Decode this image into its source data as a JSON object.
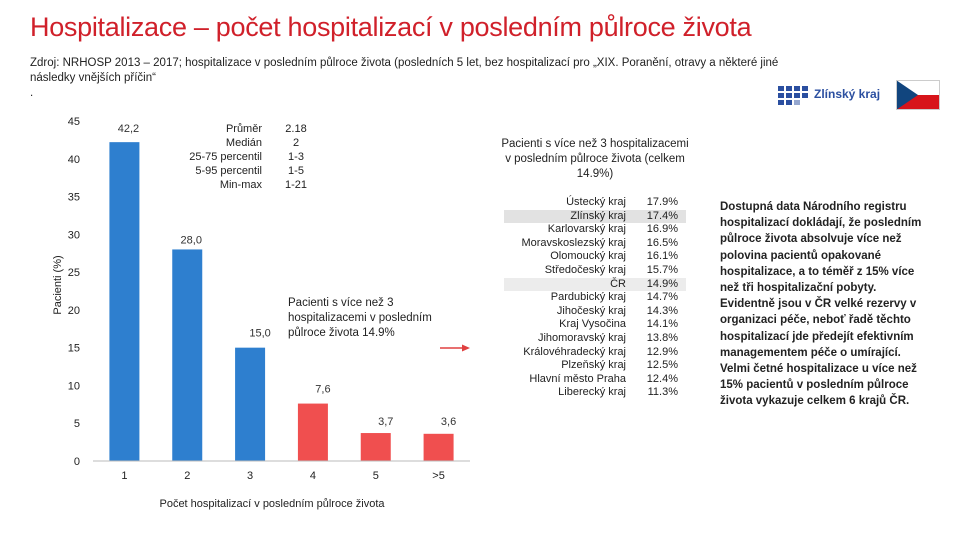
{
  "title": "Hospitalizace – počet hospitalizací v posledním půlroce života",
  "source_line1": "Zdroj: NRHOSP 2013 – 2017; hospitalizace v posledním půlroce života (posledních 5 let, bez hospitalizací pro „XIX. Poranění, otravy a některé jiné",
  "source_line2": "následky vnějších příčin“",
  "source_line3": ".",
  "logo": {
    "text": "Zlínský kraj",
    "brand_color": "#2b4fa0"
  },
  "chart_data": {
    "type": "bar",
    "categories": [
      "1",
      "2",
      "3",
      "4",
      "5",
      ">5"
    ],
    "values": [
      42.2,
      28.0,
      15.0,
      7.6,
      3.7,
      3.6
    ],
    "value_labels": [
      "42,2",
      "28,0",
      "15,0",
      "7,6",
      "3,7",
      "3,6"
    ],
    "colors": [
      "#2e7fcf",
      "#2e7fcf",
      "#2e7fcf",
      "#f04f4f",
      "#f04f4f",
      "#f04f4f"
    ],
    "ylabel": "Pacienti (%)",
    "xlabel": "Počet hospitalizací v posledním půlroce života",
    "ylim": [
      0,
      45
    ],
    "yticks": [
      0,
      5,
      10,
      15,
      20,
      25,
      30,
      35,
      40,
      45
    ],
    "grid": false,
    "legend": {
      "labels": [
        "Průměr",
        "Medián",
        "25-75 percentil",
        "5-95 percentil",
        "Min-max"
      ],
      "values": [
        "2.18",
        "2",
        "1-3",
        "1-5",
        "1-21"
      ]
    },
    "annotation": "Pacienti s více než 3 hospitalizacemi v posledním půlroce života 14.9%"
  },
  "regions": {
    "title": "Pacienti s více než 3 hospitalizacemi v posledním půlroce života (celkem 14.9%)",
    "rows": [
      {
        "name": "Ústecký kraj",
        "value": "17.9%"
      },
      {
        "name": "Zlínský kraj",
        "value": "17.4%"
      },
      {
        "name": "Karlovarský kraj",
        "value": "16.9%"
      },
      {
        "name": "Moravskoslezský kraj",
        "value": "16.5%"
      },
      {
        "name": "Olomoucký kraj",
        "value": "16.1%"
      },
      {
        "name": "Středočeský kraj",
        "value": "15.7%"
      },
      {
        "name": "ČR",
        "value": "14.9%"
      },
      {
        "name": "Pardubický kraj",
        "value": "14.7%"
      },
      {
        "name": "Jihočeský kraj",
        "value": "14.3%"
      },
      {
        "name": "Kraj Vysočina",
        "value": "14.1%"
      },
      {
        "name": "Jihomoravský kraj",
        "value": "13.8%"
      },
      {
        "name": "Královéhradecký kraj",
        "value": "12.9%"
      },
      {
        "name": "Plzeňský kraj",
        "value": "12.5%"
      },
      {
        "name": "Hlavní město Praha",
        "value": "12.4%"
      },
      {
        "name": "Liberecký kraj",
        "value": "11.3%"
      }
    ],
    "highlight": [
      "Zlínský kraj",
      "ČR"
    ]
  },
  "note": "Dostupná data Národního registru hospitalizací dokládají, že polovina pacientů opakované hospitalizace, a to téměř z 15% více než tři hospitalizační pobyty. Evidentně jsou v ČR velké rezervy v organizaci péče, neboť řadě těchto hospitalizací jde předejít efektivním managementem péče o umírající. Velmi četné hospitalizace u více než 15% pacientů v posledním půlroce života vykazuje celkem 6 krajů ČR.",
  "note_lines": [
    "Dostupná data Národního registru",
    "hospitalizací dokládají, že posledním",
    "půlroce života absolvuje více než",
    "polovina pacientů opakované",
    "hospitalizace, a to téměř z 15% více",
    "než tři hospitalizační pobyty.",
    "Evidentně jsou v ČR velké rezervy v",
    "organizaci péče, neboť řadě těchto",
    "hospitalizací jde předejít efektivním",
    "managementem péče o umírající.",
    "Velmi četné hospitalizace u více než",
    "15% pacientů v posledním půlroce",
    "života vykazuje celkem 6 krajů ČR."
  ]
}
